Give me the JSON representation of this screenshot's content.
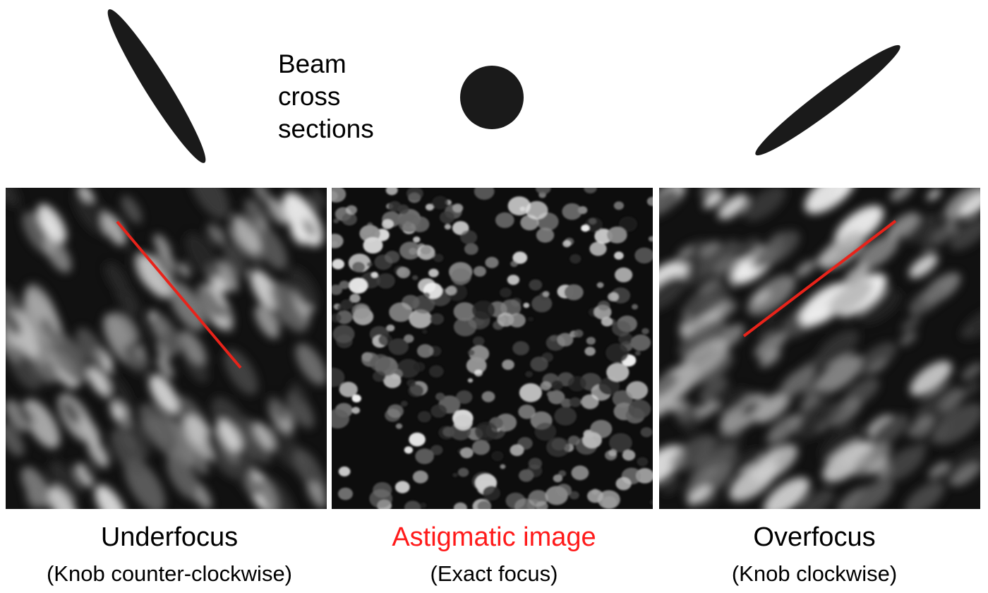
{
  "beam_label": {
    "lines": [
      "Beam",
      "cross",
      "sections"
    ]
  },
  "panels": [
    {
      "key": "underfocus",
      "title": "Underfocus",
      "subtitle": "(Knob counter-clockwise)",
      "title_color": "#000000",
      "beam_shape": "ellipse-tilted-down",
      "streak": true
    },
    {
      "key": "focus",
      "title": "Astigmatic image",
      "subtitle": "(Exact focus)",
      "title_color": "#ff1a1a",
      "beam_shape": "circle",
      "streak": false
    },
    {
      "key": "overfocus",
      "title": "Overfocus",
      "subtitle": "(Knob clockwise)",
      "title_color": "#000000",
      "beam_shape": "ellipse-tilted-up",
      "streak": true
    }
  ],
  "colors": {
    "shape": "#1a1a1a",
    "streak_line": "#e8231a",
    "highlight_title": "#ff1a1a"
  }
}
